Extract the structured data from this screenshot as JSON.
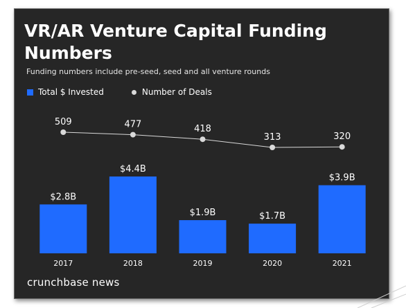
{
  "chart_data": {
    "type": "bar",
    "title": "VR/AR Venture Capital Funding Numbers",
    "subtitle": "Funding numbers include pre-seed, seed and all venture rounds",
    "categories": [
      "2017",
      "2018",
      "2019",
      "2020",
      "2021"
    ],
    "series": [
      {
        "name": "Total $ Invested",
        "type": "bar",
        "values": [
          2.8,
          4.4,
          1.9,
          1.7,
          3.9
        ],
        "labels": [
          "$2.8B",
          "$4.4B",
          "$1.9B",
          "$1.7B",
          "$3.9B"
        ],
        "color": "#1f6bff"
      },
      {
        "name": "Number of Deals",
        "type": "line",
        "values": [
          509,
          477,
          418,
          313,
          320
        ],
        "labels": [
          "509",
          "477",
          "418",
          "313",
          "320"
        ],
        "color": "#d9d9d9"
      }
    ],
    "legend_position": "top-left",
    "grid": false,
    "xlabel": "",
    "ylabel": ""
  },
  "brand": {
    "name": "crunchbase news"
  },
  "colors": {
    "background": "#262626",
    "bar": "#1f6bff",
    "line": "#d9d9d9",
    "text": "#ffffff"
  }
}
